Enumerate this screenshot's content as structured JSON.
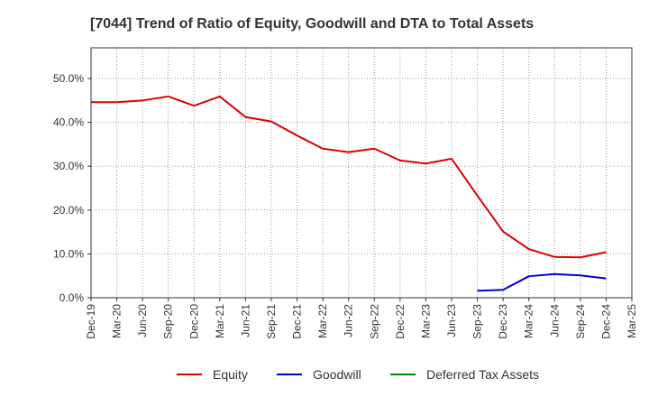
{
  "chart_data": {
    "type": "line",
    "title": "[7044]  Trend of Ratio of Equity, Goodwill and DTA to Total Assets",
    "xlabel": "",
    "ylabel": "",
    "ylim": [
      0,
      57
    ],
    "y_ticks": [
      0,
      10,
      20,
      30,
      40,
      50
    ],
    "y_tick_labels": [
      "0.0%",
      "10.0%",
      "20.0%",
      "30.0%",
      "40.0%",
      "50.0%"
    ],
    "grid": true,
    "legend_position": "bottom",
    "categories": [
      "Dec-19",
      "Mar-20",
      "Jun-20",
      "Sep-20",
      "Dec-20",
      "Mar-21",
      "Jun-21",
      "Sep-21",
      "Dec-21",
      "Mar-22",
      "Jun-22",
      "Sep-22",
      "Dec-22",
      "Mar-23",
      "Jun-23",
      "Sep-23",
      "Dec-23",
      "Mar-24",
      "Jun-24",
      "Sep-24",
      "Dec-24",
      "Mar-25"
    ],
    "series": [
      {
        "name": "Equity",
        "color": "#dd0000",
        "values": [
          44.6,
          44.6,
          45.0,
          45.9,
          43.8,
          45.9,
          41.2,
          40.2,
          37.0,
          34.0,
          33.2,
          34.0,
          31.3,
          30.6,
          31.7,
          23.3,
          15.1,
          11.1,
          9.3,
          9.2,
          10.4,
          null
        ]
      },
      {
        "name": "Goodwill",
        "color": "#0000cc",
        "values": [
          null,
          null,
          null,
          null,
          null,
          null,
          null,
          null,
          null,
          null,
          null,
          null,
          null,
          null,
          null,
          1.6,
          1.8,
          4.9,
          5.4,
          5.1,
          4.4,
          null
        ]
      },
      {
        "name": "Deferred Tax Assets",
        "color": "#008800",
        "values": [
          null,
          null,
          null,
          null,
          null,
          null,
          null,
          null,
          null,
          null,
          null,
          null,
          null,
          null,
          null,
          null,
          null,
          null,
          null,
          null,
          null,
          null
        ]
      }
    ]
  }
}
